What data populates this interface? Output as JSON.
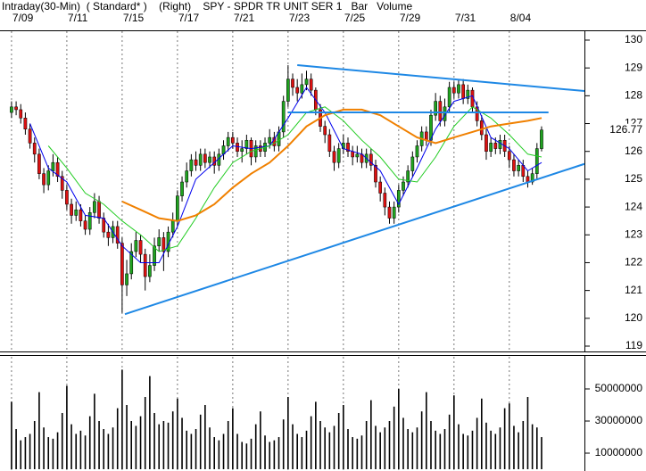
{
  "chart_data": [
    {
      "type": "candlestick",
      "title": "Intraday(30-Min)  ( Standard* )    (Right)    SPY - SPDR TR UNIT SER 1   Bar   Volume",
      "up_color": "#1fa31f",
      "down_color": "#dd1111",
      "wick_color": "#000000",
      "xgrid": true,
      "xlim": [
        -2.5,
        124.3
      ],
      "xticks": [
        {
          "value": 0,
          "label": "7/09"
        },
        {
          "value": 12,
          "label": "7/11"
        },
        {
          "value": 24,
          "label": "7/15"
        },
        {
          "value": 36,
          "label": "7/17"
        },
        {
          "value": 48,
          "label": "7/21"
        },
        {
          "value": 60,
          "label": "7/23"
        },
        {
          "value": 72,
          "label": "7/25"
        },
        {
          "value": 84,
          "label": "7/29"
        },
        {
          "value": 96,
          "label": "7/31"
        },
        {
          "value": 108,
          "label": "8/04"
        }
      ],
      "ylim": [
        118.84,
        130.32
      ],
      "yticks": [
        119,
        120,
        121,
        122,
        123,
        124,
        125,
        126,
        127,
        128,
        129,
        130
      ],
      "open": [
        127.4,
        127.6,
        127.5,
        127.2,
        126.8,
        126.3,
        125.9,
        125.2,
        124.8,
        125.3,
        125.6,
        125.1,
        124.6,
        124.1,
        123.7,
        123.9,
        123.5,
        123.2,
        123.8,
        124.2,
        123.6,
        123.1,
        122.9,
        123.3,
        122.7,
        121.2,
        121.6,
        122.4,
        122.8,
        122.3,
        121.5,
        121.9,
        122.6,
        122.9,
        122.4,
        123.1,
        123.5,
        124.4,
        124.9,
        125.3,
        125.7,
        125.5,
        125.9,
        125.6,
        125.8,
        125.5,
        125.9,
        126.2,
        126.5,
        126.3,
        126.0,
        126.1,
        126.4,
        125.8,
        126.2,
        126.0,
        126.3,
        126.5,
        126.2,
        126.7,
        127.8,
        128.6,
        128.3,
        128.1,
        128.4,
        128.6,
        128.2,
        127.5,
        126.9,
        126.6,
        126.0,
        125.6,
        126.1,
        126.3,
        126.0,
        125.8,
        125.9,
        125.6,
        125.9,
        125.5,
        124.9,
        124.5,
        124.0,
        123.6,
        124.0,
        124.6,
        124.9,
        125.3,
        125.8,
        126.2,
        126.7,
        126.4,
        127.3,
        127.8,
        127.1,
        127.6,
        128.3,
        128.1,
        128.4,
        127.9,
        128.2,
        127.6,
        127.1,
        126.6,
        126.0,
        126.3,
        126.1,
        126.4,
        126.0,
        125.7,
        125.3,
        125.5,
        125.1,
        124.9,
        125.2,
        126.1
      ],
      "high": [
        127.8,
        127.8,
        127.7,
        127.4,
        127.0,
        126.5,
        126.1,
        125.4,
        125.5,
        125.9,
        125.8,
        125.3,
        124.8,
        124.3,
        124.2,
        124.1,
        123.7,
        124.0,
        124.5,
        124.4,
        123.8,
        123.4,
        123.5,
        123.5,
        122.9,
        122.1,
        122.7,
        123.1,
        123.0,
        122.5,
        122.3,
        122.9,
        123.2,
        123.1,
        123.3,
        123.8,
        124.6,
        125.1,
        125.6,
        125.9,
        126.0,
        126.1,
        126.1,
        126.0,
        126.0,
        126.1,
        126.4,
        126.7,
        126.7,
        126.5,
        126.4,
        126.6,
        126.5,
        126.4,
        126.4,
        126.5,
        126.8,
        126.7,
        126.9,
        128.0,
        129.1,
        128.8,
        128.6,
        128.8,
        128.9,
        128.8,
        128.3,
        127.7,
        127.1,
        126.8,
        126.2,
        126.3,
        126.6,
        126.5,
        126.2,
        126.2,
        126.1,
        126.1,
        126.1,
        125.7,
        125.1,
        124.7,
        124.2,
        124.2,
        124.8,
        125.1,
        125.5,
        126.0,
        126.4,
        126.9,
        126.9,
        127.5,
        128.1,
        128.0,
        127.9,
        128.5,
        128.5,
        128.6,
        128.6,
        128.4,
        128.3,
        127.8,
        127.3,
        126.8,
        126.5,
        126.5,
        126.6,
        126.6,
        126.2,
        125.9,
        125.7,
        125.7,
        125.3,
        125.4,
        126.3,
        126.9
      ],
      "low": [
        127.2,
        127.3,
        127.0,
        126.6,
        126.1,
        125.6,
        125.0,
        124.5,
        124.6,
        125.1,
        124.9,
        124.3,
        123.9,
        123.4,
        123.5,
        123.3,
        123.0,
        123.0,
        123.6,
        123.4,
        122.9,
        122.6,
        122.7,
        122.5,
        120.2,
        120.8,
        121.4,
        122.2,
        122.0,
        121.0,
        121.3,
        121.7,
        122.4,
        121.7,
        122.2,
        122.9,
        123.3,
        124.2,
        124.7,
        125.1,
        125.3,
        125.3,
        125.4,
        125.4,
        125.2,
        125.3,
        125.7,
        126.0,
        126.1,
        125.8,
        125.6,
        125.9,
        125.5,
        125.6,
        125.8,
        125.8,
        126.1,
        126.0,
        126.0,
        126.5,
        127.6,
        128.0,
        127.8,
        127.9,
        128.2,
        128.0,
        127.3,
        126.7,
        126.3,
        125.8,
        125.3,
        125.4,
        125.9,
        125.8,
        125.5,
        125.6,
        125.4,
        125.4,
        125.3,
        124.7,
        124.2,
        123.7,
        123.4,
        123.4,
        123.8,
        124.4,
        124.7,
        125.1,
        125.6,
        126.0,
        126.2,
        126.2,
        127.1,
        126.9,
        126.9,
        127.4,
        127.9,
        127.9,
        127.7,
        127.7,
        127.4,
        126.9,
        126.4,
        125.7,
        125.8,
        125.9,
        125.9,
        125.8,
        125.4,
        125.1,
        125.1,
        124.9,
        124.7,
        124.8,
        125.0,
        126.0
      ],
      "close": [
        127.6,
        127.5,
        127.2,
        126.8,
        126.3,
        125.9,
        125.2,
        124.8,
        125.3,
        125.6,
        125.1,
        124.6,
        124.1,
        123.7,
        123.9,
        123.5,
        123.2,
        123.8,
        124.2,
        123.6,
        123.1,
        122.9,
        123.3,
        122.7,
        121.2,
        121.6,
        122.4,
        122.8,
        122.3,
        121.5,
        121.9,
        122.6,
        122.9,
        122.4,
        123.1,
        123.5,
        124.4,
        124.9,
        125.3,
        125.7,
        125.5,
        125.9,
        125.6,
        125.8,
        125.5,
        125.9,
        126.2,
        126.5,
        126.3,
        126.0,
        126.1,
        126.4,
        125.8,
        126.2,
        126.0,
        126.3,
        126.5,
        126.2,
        126.7,
        127.8,
        128.6,
        128.3,
        128.1,
        128.4,
        128.6,
        128.2,
        127.5,
        126.9,
        126.6,
        126.0,
        125.6,
        126.1,
        126.3,
        126.0,
        125.8,
        125.9,
        125.6,
        125.9,
        125.5,
        124.9,
        124.5,
        124.0,
        123.6,
        124.0,
        124.6,
        124.9,
        125.3,
        125.8,
        126.2,
        126.7,
        126.4,
        127.3,
        127.8,
        127.1,
        127.6,
        128.3,
        128.1,
        128.4,
        127.9,
        128.2,
        127.6,
        127.1,
        126.6,
        126.0,
        126.3,
        126.1,
        126.4,
        126.0,
        125.7,
        125.3,
        125.5,
        125.1,
        124.9,
        125.2,
        126.1,
        126.77
      ],
      "overlays": [
        {
          "color": "#0000ee",
          "x": [
            4,
            8,
            12,
            16,
            20,
            24,
            28,
            32,
            36,
            40,
            44,
            48,
            52,
            56,
            60,
            64,
            68,
            72,
            76,
            80,
            84,
            88,
            92,
            96,
            100,
            104,
            108,
            112,
            115
          ],
          "values": [
            127.0,
            125.4,
            124.9,
            123.7,
            123.6,
            122.6,
            122.0,
            122.0,
            123.3,
            125.0,
            125.6,
            126.2,
            126.1,
            126.2,
            127.2,
            128.3,
            127.4,
            126.1,
            125.9,
            125.3,
            124.1,
            125.4,
            126.8,
            127.8,
            128.0,
            126.5,
            126.1,
            125.3,
            125.6
          ]
        },
        {
          "color": "#22cc22",
          "x": [
            8,
            12,
            16,
            20,
            24,
            28,
            32,
            36,
            40,
            44,
            48,
            52,
            56,
            60,
            64,
            68,
            72,
            76,
            80,
            84,
            88,
            92,
            96,
            100,
            104,
            108,
            112,
            115
          ],
          "values": [
            126.2,
            125.4,
            124.5,
            124.1,
            123.5,
            123.0,
            122.4,
            122.6,
            123.6,
            124.7,
            125.6,
            126.0,
            126.2,
            126.6,
            127.4,
            127.6,
            127.1,
            126.4,
            125.8,
            125.0,
            124.9,
            125.8,
            126.9,
            127.6,
            127.2,
            126.6,
            125.9,
            125.8
          ]
        },
        {
          "color": "#f08000",
          "x": [
            24,
            28,
            32,
            36,
            40,
            44,
            48,
            52,
            56,
            60,
            64,
            68,
            72,
            76,
            80,
            84,
            88,
            92,
            96,
            100,
            104,
            108,
            112,
            115
          ],
          "values": [
            124.2,
            123.9,
            123.6,
            123.5,
            123.7,
            124.1,
            124.7,
            125.2,
            125.6,
            126.2,
            126.9,
            127.3,
            127.5,
            127.5,
            127.3,
            126.9,
            126.5,
            126.3,
            126.5,
            126.7,
            126.9,
            127.0,
            127.1,
            127.2
          ]
        }
      ],
      "trendlines": [
        {
          "color": "#1e88e5",
          "x": [
            62,
            124.3
          ],
          "y": [
            129.1,
            128.17
          ]
        },
        {
          "color": "#1e88e5",
          "x": [
            60,
            116.5
          ],
          "y": [
            127.4,
            127.4
          ]
        },
        {
          "color": "#1e88e5",
          "x": [
            24.6,
            124.3
          ],
          "y": [
            120.15,
            125.55
          ]
        }
      ]
    },
    {
      "type": "bar",
      "color": "#000000",
      "xlim": [
        -2.5,
        124.3
      ],
      "ylim": [
        0,
        70000000
      ],
      "yticks": [
        10000000,
        30000000,
        50000000
      ],
      "values": [
        42000000,
        25000000,
        18000000,
        20000000,
        22000000,
        30000000,
        48000000,
        26000000,
        20000000,
        19000000,
        23000000,
        35000000,
        52000000,
        28000000,
        22000000,
        24000000,
        21000000,
        33000000,
        47000000,
        30000000,
        25000000,
        22000000,
        26000000,
        38000000,
        62000000,
        40000000,
        30000000,
        27000000,
        33000000,
        45000000,
        58000000,
        35000000,
        28000000,
        30000000,
        29000000,
        36000000,
        44000000,
        32000000,
        24000000,
        22000000,
        25000000,
        34000000,
        40000000,
        26000000,
        20000000,
        18000000,
        22000000,
        30000000,
        38000000,
        22000000,
        17000000,
        16000000,
        19000000,
        28000000,
        36000000,
        21000000,
        17000000,
        18000000,
        20000000,
        31000000,
        45000000,
        28000000,
        22000000,
        20000000,
        24000000,
        33000000,
        42000000,
        30000000,
        26000000,
        23000000,
        27000000,
        35000000,
        40000000,
        25000000,
        20000000,
        19000000,
        21000000,
        30000000,
        43000000,
        27000000,
        23000000,
        26000000,
        30000000,
        39000000,
        50000000,
        32000000,
        25000000,
        23000000,
        26000000,
        36000000,
        48000000,
        30000000,
        24000000,
        22000000,
        25000000,
        34000000,
        46000000,
        28000000,
        22000000,
        21000000,
        24000000,
        32000000,
        44000000,
        29000000,
        24000000,
        22000000,
        26000000,
        38000000,
        41000000,
        27000000,
        23000000,
        30000000,
        45000000,
        28000000,
        26000000,
        20000000
      ]
    }
  ]
}
